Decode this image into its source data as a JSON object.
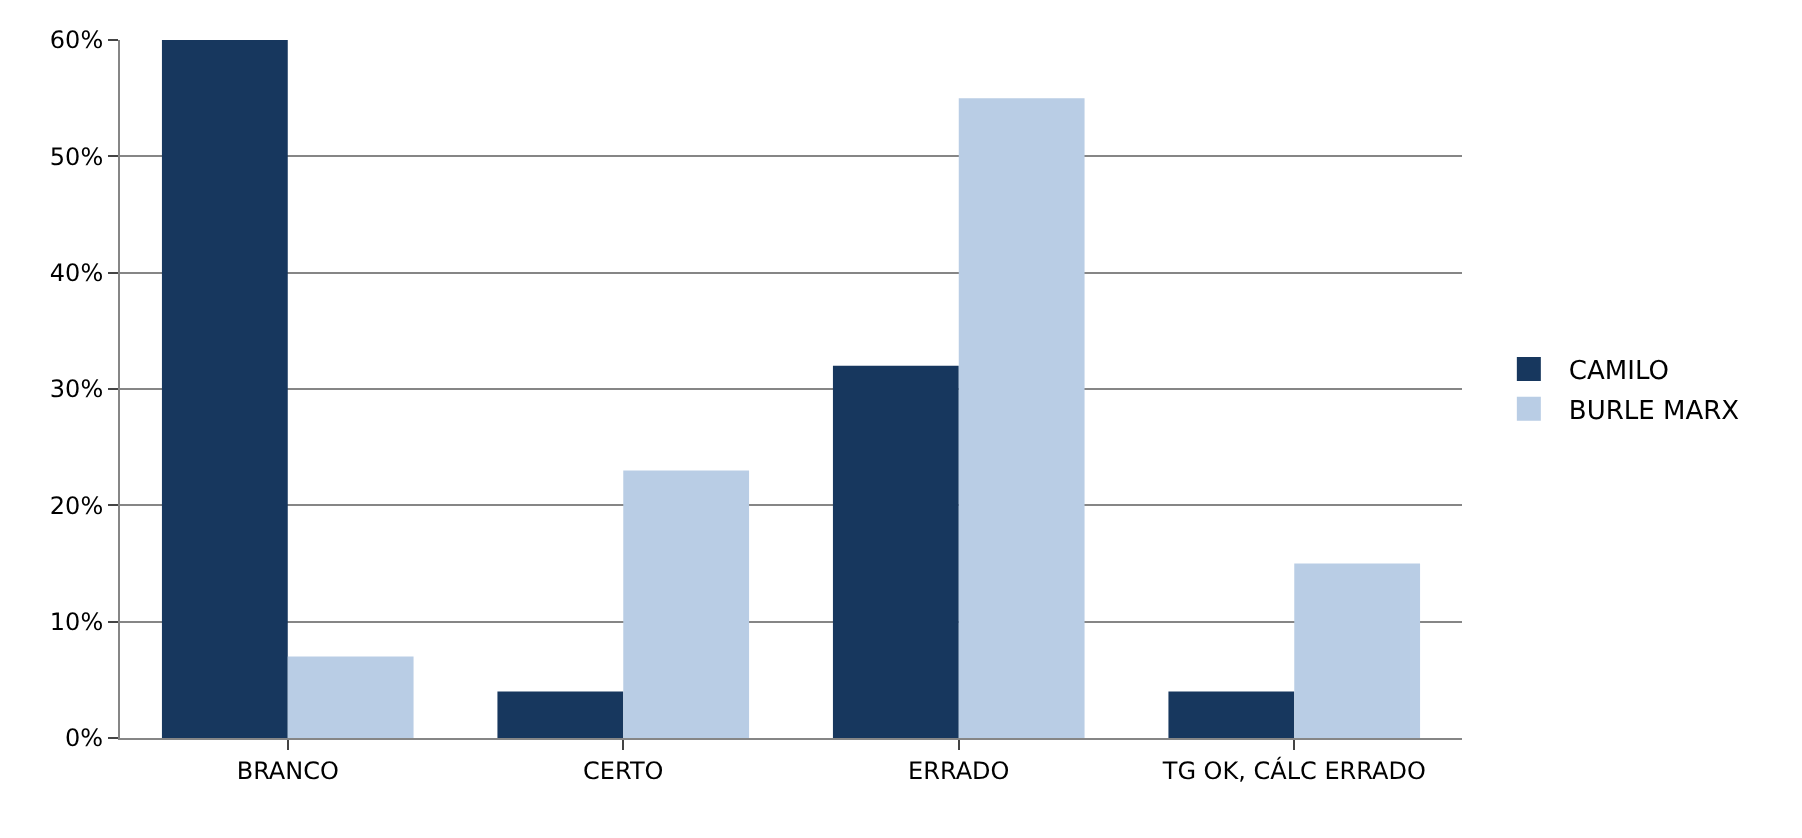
{
  "chart_data": {
    "type": "bar",
    "categories": [
      "BRANCO",
      "CERTO",
      "ERRADO",
      "TG OK, CÁLC ERRADO"
    ],
    "series": [
      {
        "name": "CAMILO",
        "color": "#17375e",
        "values": [
          60,
          4,
          32,
          4
        ]
      },
      {
        "name": "BURLE MARX",
        "color": "#b9cde5",
        "values": [
          7,
          23,
          55,
          15
        ]
      }
    ],
    "ylim": [
      0,
      60
    ],
    "yticks": [
      {
        "value": 0,
        "label": "0%"
      },
      {
        "value": 10,
        "label": "10%"
      },
      {
        "value": 20,
        "label": "20%"
      },
      {
        "value": 30,
        "label": "30%"
      },
      {
        "value": 40,
        "label": "40%"
      },
      {
        "value": 50,
        "label": "50%"
      },
      {
        "value": 60,
        "label": "60%"
      }
    ],
    "grid": "y",
    "legend": "right"
  }
}
